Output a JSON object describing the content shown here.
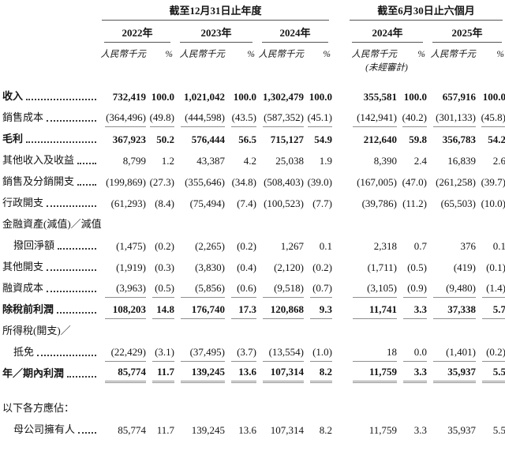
{
  "page": {
    "background": "#ffffff",
    "text_color": "#141414",
    "header_rule_color": "#555555",
    "data_rule_color": "#8f8f8f"
  },
  "header": {
    "sections": [
      {
        "title": "截至12月31日止年度",
        "years": [
          {
            "label": "2022年"
          },
          {
            "label": "2023年"
          },
          {
            "label": "2024年"
          }
        ]
      },
      {
        "title": "截至6月30日止六個月",
        "years": [
          {
            "label": "2024年",
            "note": "(未經審計)"
          },
          {
            "label": "2025年"
          }
        ]
      }
    ],
    "unit_label": "人民幣千元",
    "pct_label": "%"
  },
  "table": {
    "rows": [
      {
        "type": "data",
        "label": "收入",
        "dots": true,
        "bold": true,
        "indent": false,
        "rule": "none",
        "values": [
          "732,419",
          "100.0",
          "1,021,042",
          "100.0",
          "1,302,479",
          "100.0",
          "355,581",
          "100.0",
          "657,916",
          "100.0"
        ]
      },
      {
        "type": "data",
        "label": "銷售成本",
        "dots": true,
        "bold": false,
        "indent": false,
        "rule": "single",
        "values": [
          "(364,496)",
          "(49.8)",
          "(444,598)",
          "(43.5)",
          "(587,352)",
          "(45.1)",
          "(142,941)",
          "(40.2)",
          "(301,133)",
          "(45.8)"
        ]
      },
      {
        "type": "data",
        "label": "毛利",
        "dots": true,
        "bold": true,
        "indent": false,
        "rule": "none",
        "values": [
          "367,923",
          "50.2",
          "576,444",
          "56.5",
          "715,127",
          "54.9",
          "212,640",
          "59.8",
          "356,783",
          "54.2"
        ]
      },
      {
        "type": "data",
        "label": "其他收入及收益",
        "dots": true,
        "bold": false,
        "indent": false,
        "rule": "none",
        "values": [
          "8,799",
          "1.2",
          "43,387",
          "4.2",
          "25,038",
          "1.9",
          "8,390",
          "2.4",
          "16,839",
          "2.6"
        ]
      },
      {
        "type": "data",
        "label": "銷售及分銷開支",
        "dots": true,
        "bold": false,
        "indent": false,
        "rule": "none",
        "values": [
          "(199,869)",
          "(27.3)",
          "(355,646)",
          "(34.8)",
          "(508,403)",
          "(39.0)",
          "(167,005)",
          "(47.0)",
          "(261,258)",
          "(39.7)"
        ]
      },
      {
        "type": "data",
        "label": "行政開支",
        "dots": true,
        "bold": false,
        "indent": false,
        "rule": "none",
        "values": [
          "(61,293)",
          "(8.4)",
          "(75,494)",
          "(7.4)",
          "(100,523)",
          "(7.7)",
          "(39,786)",
          "(11.2)",
          "(65,503)",
          "(10.0)"
        ]
      },
      {
        "type": "heading",
        "label": "金融資產(減值)／減值",
        "dots": false,
        "bold": false,
        "indent": false
      },
      {
        "type": "data",
        "label": "撥回淨額",
        "dots": true,
        "bold": false,
        "indent": true,
        "rule": "none",
        "values": [
          "(1,475)",
          "(0.2)",
          "(2,265)",
          "(0.2)",
          "1,267",
          "0.1",
          "2,318",
          "0.7",
          "376",
          "0.1"
        ]
      },
      {
        "type": "data",
        "label": "其他開支",
        "dots": true,
        "bold": false,
        "indent": false,
        "rule": "none",
        "values": [
          "(1,919)",
          "(0.3)",
          "(3,830)",
          "(0.4)",
          "(2,120)",
          "(0.2)",
          "(1,711)",
          "(0.5)",
          "(419)",
          "(0.1)"
        ]
      },
      {
        "type": "data",
        "label": "融資成本",
        "dots": true,
        "bold": false,
        "indent": false,
        "rule": "single",
        "values": [
          "(3,963)",
          "(0.5)",
          "(5,856)",
          "(0.6)",
          "(9,518)",
          "(0.7)",
          "(3,105)",
          "(0.9)",
          "(9,480)",
          "(1.4)"
        ]
      },
      {
        "type": "data",
        "label": "除稅前利潤",
        "dots": true,
        "bold": true,
        "indent": false,
        "rule": "single",
        "values": [
          "108,203",
          "14.8",
          "176,740",
          "17.3",
          "120,868",
          "9.3",
          "11,741",
          "3.3",
          "37,338",
          "5.7"
        ]
      },
      {
        "type": "heading",
        "label": "所得稅(開支)／",
        "dots": false,
        "bold": false,
        "indent": false
      },
      {
        "type": "data",
        "label": "抵免",
        "dots": true,
        "bold": false,
        "indent": true,
        "rule": "single",
        "values": [
          "(22,429)",
          "(3.1)",
          "(37,495)",
          "(3.7)",
          "(13,554)",
          "(1.0)",
          "18",
          "0.0",
          "(1,401)",
          "(0.2)"
        ]
      },
      {
        "type": "data",
        "label": "年／期內利潤",
        "dots": true,
        "bold": true,
        "indent": false,
        "rule": "double",
        "values": [
          "85,774",
          "11.7",
          "139,245",
          "13.6",
          "107,314",
          "8.2",
          "11,759",
          "3.3",
          "35,937",
          "5.5"
        ]
      },
      {
        "type": "spacer"
      },
      {
        "type": "heading",
        "label": "以下各方應佔：",
        "dots": false,
        "bold": false,
        "indent": false
      },
      {
        "type": "data",
        "label": "母公司擁有人",
        "dots": true,
        "bold": false,
        "indent": true,
        "rule": "none",
        "values": [
          "85,774",
          "11.7",
          "139,245",
          "13.6",
          "107,314",
          "8.2",
          "11,759",
          "3.3",
          "35,937",
          "5.5"
        ]
      }
    ]
  }
}
